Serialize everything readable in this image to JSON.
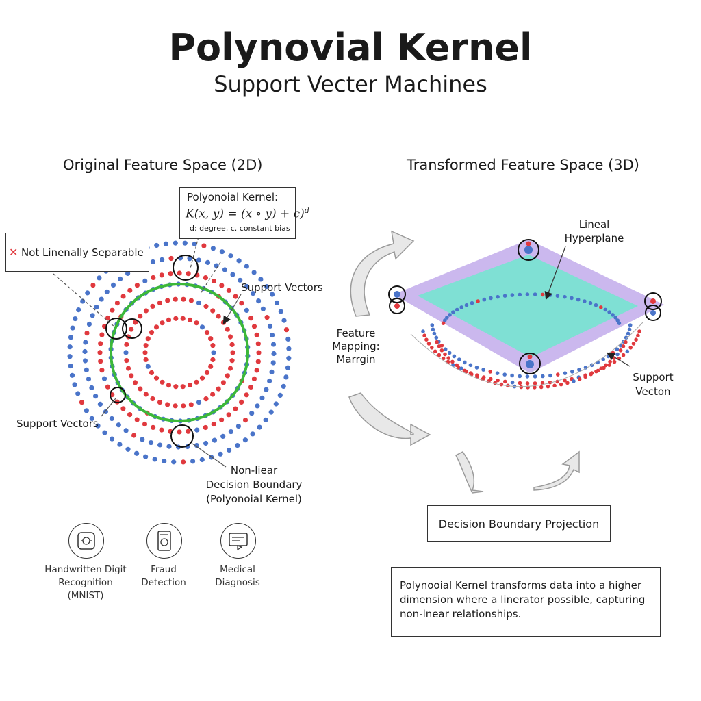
{
  "header": {
    "title": "Polynovial Kernel",
    "subtitle": "Support Vecter Machines"
  },
  "left_panel": {
    "title": "Original Feature Space (2D)",
    "kernel_box": {
      "heading": "Polyonoial Kernel:",
      "formula": "K(x, y) = (x ∘ y) + c)",
      "formula_sup": "d",
      "note": "d: degree, c. constant bias"
    },
    "not_separable": {
      "icon_glyph": "✕",
      "text": "Not Linenally Separable"
    },
    "support_vectors_top": "Support Vectors",
    "support_vectors_left": "Support Vectors",
    "boundary_label": [
      "Non-liear",
      "Decision Boundary",
      "(Polyonoial Kernel)"
    ]
  },
  "right_panel": {
    "title": "Transformed Feature Space (3D)",
    "hyperplane_label": [
      "Lineal",
      "Hyperplane"
    ],
    "mapping_label": [
      "Feature",
      "Mapping:",
      "Marrgin"
    ],
    "support_vector_label": [
      "Support",
      "Vecton"
    ],
    "projection_box": "Decision Boundary Projection",
    "description": "Polynooial Kernel transforms data into a higher dimension where a linerator possible, capturing non-lnear relationships."
  },
  "applications": [
    {
      "icon": "digit-recognition-icon",
      "label": [
        "Handwritten Digit",
        "Recognition",
        "(MNIST)"
      ]
    },
    {
      "icon": "fraud-detection-icon",
      "label": [
        "Fraud",
        "Detection"
      ]
    },
    {
      "icon": "medical-diagnosis-icon",
      "label": [
        "Medical",
        "Diagnosis"
      ]
    }
  ],
  "colors": {
    "class_a": "#4a74c9",
    "class_b": "#e0393e",
    "boundary": "#3cb83a",
    "plane_fill": "#7fe0d4",
    "plane_margin": "#cbb8ee",
    "arrow": "#e6e6e6"
  }
}
